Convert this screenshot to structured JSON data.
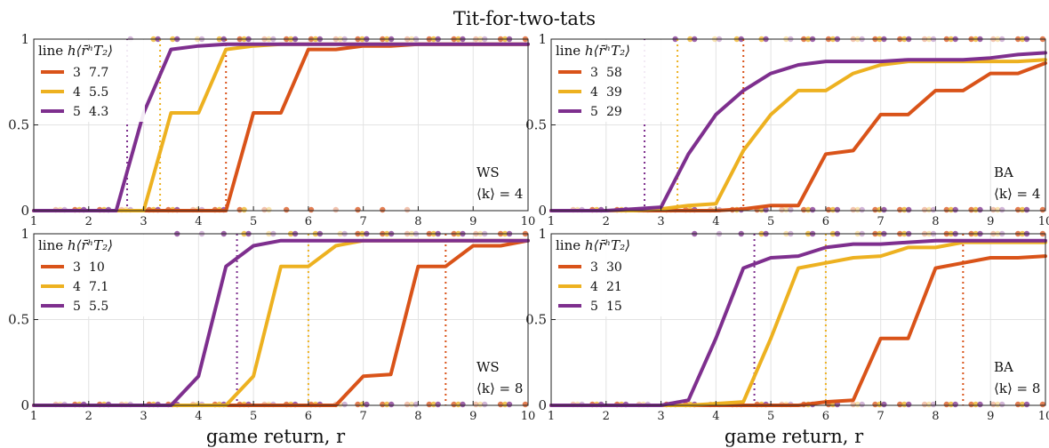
{
  "figure": {
    "title": "Tit-for-two-tats",
    "xlabel": "game return, r"
  },
  "chart_data": [
    {
      "type": "line",
      "network": "WS",
      "k_label": "⟨k⟩ = 4",
      "legend": {
        "header_line": "line",
        "header_h": "h",
        "header_r": "⟨r̄ʰT₂⟩",
        "placement": "top-left"
      },
      "xlim": [
        1,
        10
      ],
      "ylim": [
        0,
        1
      ],
      "x_ticks": [
        "1",
        "2",
        "3",
        "4",
        "5",
        "6",
        "7",
        "8",
        "9",
        "10"
      ],
      "y_ticks": [
        "0",
        "0.5",
        "1"
      ],
      "grid": true,
      "series": [
        {
          "h": "3",
          "r_value": "7.7",
          "color": "#d95319",
          "threshold_x": 4.5,
          "x": [
            1,
            1.5,
            2,
            2.5,
            3,
            3.5,
            4,
            4.5,
            5,
            5.5,
            6,
            6.5,
            7,
            7.5,
            8,
            8.5,
            9,
            9.5,
            10
          ],
          "y": [
            0,
            0,
            0,
            0,
            0,
            0,
            0,
            0,
            0.57,
            0.57,
            0.94,
            0.94,
            0.96,
            0.96,
            0.97,
            0.97,
            0.97,
            0.97,
            0.97
          ]
        },
        {
          "h": "4",
          "r_value": "5.5",
          "color": "#edb120",
          "threshold_x": 3.3,
          "x": [
            1,
            1.5,
            2,
            2.5,
            3,
            3.5,
            4,
            4.5,
            5,
            5.5,
            6,
            6.5,
            7,
            7.5,
            8,
            8.5,
            9,
            9.5,
            10
          ],
          "y": [
            0,
            0,
            0,
            0,
            0,
            0.57,
            0.57,
            0.94,
            0.96,
            0.97,
            0.97,
            0.97,
            0.97,
            0.97,
            0.97,
            0.97,
            0.97,
            0.97,
            0.97
          ]
        },
        {
          "h": "5",
          "r_value": "4.3",
          "color": "#7e2f8e",
          "threshold_x": 2.7,
          "x": [
            1,
            1.5,
            2,
            2.5,
            3,
            3.5,
            4,
            4.5,
            5,
            5.5,
            6,
            6.5,
            7,
            7.5,
            8,
            8.5,
            9,
            9.5,
            10
          ],
          "y": [
            0,
            0,
            0,
            0,
            0.57,
            0.94,
            0.96,
            0.97,
            0.97,
            0.97,
            0.97,
            0.97,
            0.97,
            0.97,
            0.97,
            0.97,
            0.97,
            0.97,
            0.97
          ]
        }
      ]
    },
    {
      "type": "line",
      "network": "BA",
      "k_label": "⟨k⟩ = 4",
      "legend": {
        "header_line": "line",
        "header_h": "h",
        "header_r": "⟨r̄ʰT₂⟩",
        "placement": "top-left"
      },
      "xlim": [
        1,
        10
      ],
      "ylim": [
        0,
        1
      ],
      "x_ticks": [
        "1",
        "2",
        "3",
        "4",
        "5",
        "6",
        "7",
        "8",
        "9",
        "10"
      ],
      "y_ticks": [
        "0",
        "0.5",
        "1"
      ],
      "grid": true,
      "series": [
        {
          "h": "3",
          "r_value": "58",
          "color": "#d95319",
          "threshold_x": 4.5,
          "x": [
            1,
            1.5,
            2,
            2.5,
            3,
            3.5,
            4,
            4.5,
            5,
            5.5,
            6,
            6.5,
            7,
            7.5,
            8,
            8.5,
            9,
            9.5,
            10
          ],
          "y": [
            0,
            0,
            0,
            0,
            0,
            0,
            0,
            0.01,
            0.03,
            0.03,
            0.33,
            0.35,
            0.56,
            0.56,
            0.7,
            0.7,
            0.8,
            0.8,
            0.86
          ]
        },
        {
          "h": "4",
          "r_value": "39",
          "color": "#edb120",
          "threshold_x": 3.3,
          "x": [
            1,
            1.5,
            2,
            2.5,
            3,
            3.5,
            4,
            4.5,
            5,
            5.5,
            6,
            6.5,
            7,
            7.5,
            8,
            8.5,
            9,
            9.5,
            10
          ],
          "y": [
            0,
            0,
            0,
            0,
            0.01,
            0.03,
            0.04,
            0.35,
            0.56,
            0.7,
            0.7,
            0.8,
            0.85,
            0.87,
            0.87,
            0.87,
            0.87,
            0.87,
            0.88
          ]
        },
        {
          "h": "5",
          "r_value": "29",
          "color": "#7e2f8e",
          "threshold_x": 2.7,
          "x": [
            1,
            1.5,
            2,
            2.5,
            3,
            3.5,
            4,
            4.5,
            5,
            5.5,
            6,
            6.5,
            7,
            7.5,
            8,
            8.5,
            9,
            9.5,
            10
          ],
          "y": [
            0,
            0,
            0,
            0.01,
            0.02,
            0.33,
            0.56,
            0.7,
            0.8,
            0.85,
            0.87,
            0.87,
            0.87,
            0.88,
            0.88,
            0.88,
            0.89,
            0.91,
            0.92
          ]
        }
      ]
    },
    {
      "type": "line",
      "network": "WS",
      "k_label": "⟨k⟩ = 8",
      "legend": {
        "header_line": "line",
        "header_h": "h",
        "header_r": "⟨r̄ʰT₂⟩",
        "placement": "top-left"
      },
      "xlim": [
        1,
        10
      ],
      "ylim": [
        0,
        1
      ],
      "x_ticks": [
        "1",
        "2",
        "3",
        "4",
        "5",
        "6",
        "7",
        "8",
        "9",
        "10"
      ],
      "y_ticks": [
        "0",
        "0.5",
        "1"
      ],
      "grid": true,
      "series": [
        {
          "h": "3",
          "r_value": "10",
          "color": "#d95319",
          "threshold_x": 8.5,
          "x": [
            1,
            1.5,
            2,
            2.5,
            3,
            3.5,
            4,
            4.5,
            5,
            5.5,
            6,
            6.5,
            7,
            7.5,
            8,
            8.5,
            9,
            9.5,
            10
          ],
          "y": [
            0,
            0,
            0,
            0,
            0,
            0,
            0,
            0,
            0,
            0,
            0,
            0,
            0.17,
            0.18,
            0.81,
            0.81,
            0.93,
            0.93,
            0.96
          ]
        },
        {
          "h": "4",
          "r_value": "7.1",
          "color": "#edb120",
          "threshold_x": 6,
          "x": [
            1,
            1.5,
            2,
            2.5,
            3,
            3.5,
            4,
            4.5,
            5,
            5.5,
            6,
            6.5,
            7,
            7.5,
            8,
            8.5,
            9,
            9.5,
            10
          ],
          "y": [
            0,
            0,
            0,
            0,
            0,
            0,
            0,
            0,
            0.17,
            0.81,
            0.81,
            0.93,
            0.96,
            0.96,
            0.96,
            0.96,
            0.96,
            0.96,
            0.96
          ]
        },
        {
          "h": "5",
          "r_value": "5.5",
          "color": "#7e2f8e",
          "threshold_x": 4.7,
          "x": [
            1,
            1.5,
            2,
            2.5,
            3,
            3.5,
            4,
            4.5,
            5,
            5.5,
            6,
            6.5,
            7,
            7.5,
            8,
            8.5,
            9,
            9.5,
            10
          ],
          "y": [
            0,
            0,
            0,
            0,
            0,
            0,
            0.17,
            0.81,
            0.93,
            0.96,
            0.96,
            0.96,
            0.96,
            0.96,
            0.96,
            0.96,
            0.96,
            0.96,
            0.96
          ]
        }
      ]
    },
    {
      "type": "line",
      "network": "BA",
      "k_label": "⟨k⟩ = 8",
      "legend": {
        "header_line": "line",
        "header_h": "h",
        "header_r": "⟨r̄ʰT₂⟩",
        "placement": "top-left"
      },
      "xlim": [
        1,
        10
      ],
      "ylim": [
        0,
        1
      ],
      "x_ticks": [
        "1",
        "2",
        "3",
        "4",
        "5",
        "6",
        "7",
        "8",
        "9",
        "10"
      ],
      "y_ticks": [
        "0",
        "0.5",
        "1"
      ],
      "grid": true,
      "series": [
        {
          "h": "3",
          "r_value": "30",
          "color": "#d95319",
          "threshold_x": 8.5,
          "x": [
            1,
            1.5,
            2,
            2.5,
            3,
            3.5,
            4,
            4.5,
            5,
            5.5,
            6,
            6.5,
            7,
            7.5,
            8,
            8.5,
            9,
            9.5,
            10
          ],
          "y": [
            0,
            0,
            0,
            0,
            0,
            0,
            0,
            0,
            0,
            0,
            0.02,
            0.03,
            0.39,
            0.39,
            0.8,
            0.83,
            0.86,
            0.86,
            0.87
          ]
        },
        {
          "h": "4",
          "r_value": "21",
          "color": "#edb120",
          "threshold_x": 6,
          "x": [
            1,
            1.5,
            2,
            2.5,
            3,
            3.5,
            4,
            4.5,
            5,
            5.5,
            6,
            6.5,
            7,
            7.5,
            8,
            8.5,
            9,
            9.5,
            10
          ],
          "y": [
            0,
            0,
            0,
            0,
            0,
            0,
            0.01,
            0.02,
            0.39,
            0.8,
            0.83,
            0.86,
            0.87,
            0.92,
            0.92,
            0.95,
            0.95,
            0.95,
            0.95
          ]
        },
        {
          "h": "5",
          "r_value": "15",
          "color": "#7e2f8e",
          "threshold_x": 4.7,
          "x": [
            1,
            1.5,
            2,
            2.5,
            3,
            3.5,
            4,
            4.5,
            5,
            5.5,
            6,
            6.5,
            7,
            7.5,
            8,
            8.5,
            9,
            9.5,
            10
          ],
          "y": [
            0,
            0,
            0,
            0,
            0,
            0.03,
            0.39,
            0.8,
            0.86,
            0.87,
            0.92,
            0.94,
            0.94,
            0.95,
            0.96,
            0.96,
            0.96,
            0.96,
            0.96
          ]
        }
      ]
    }
  ]
}
